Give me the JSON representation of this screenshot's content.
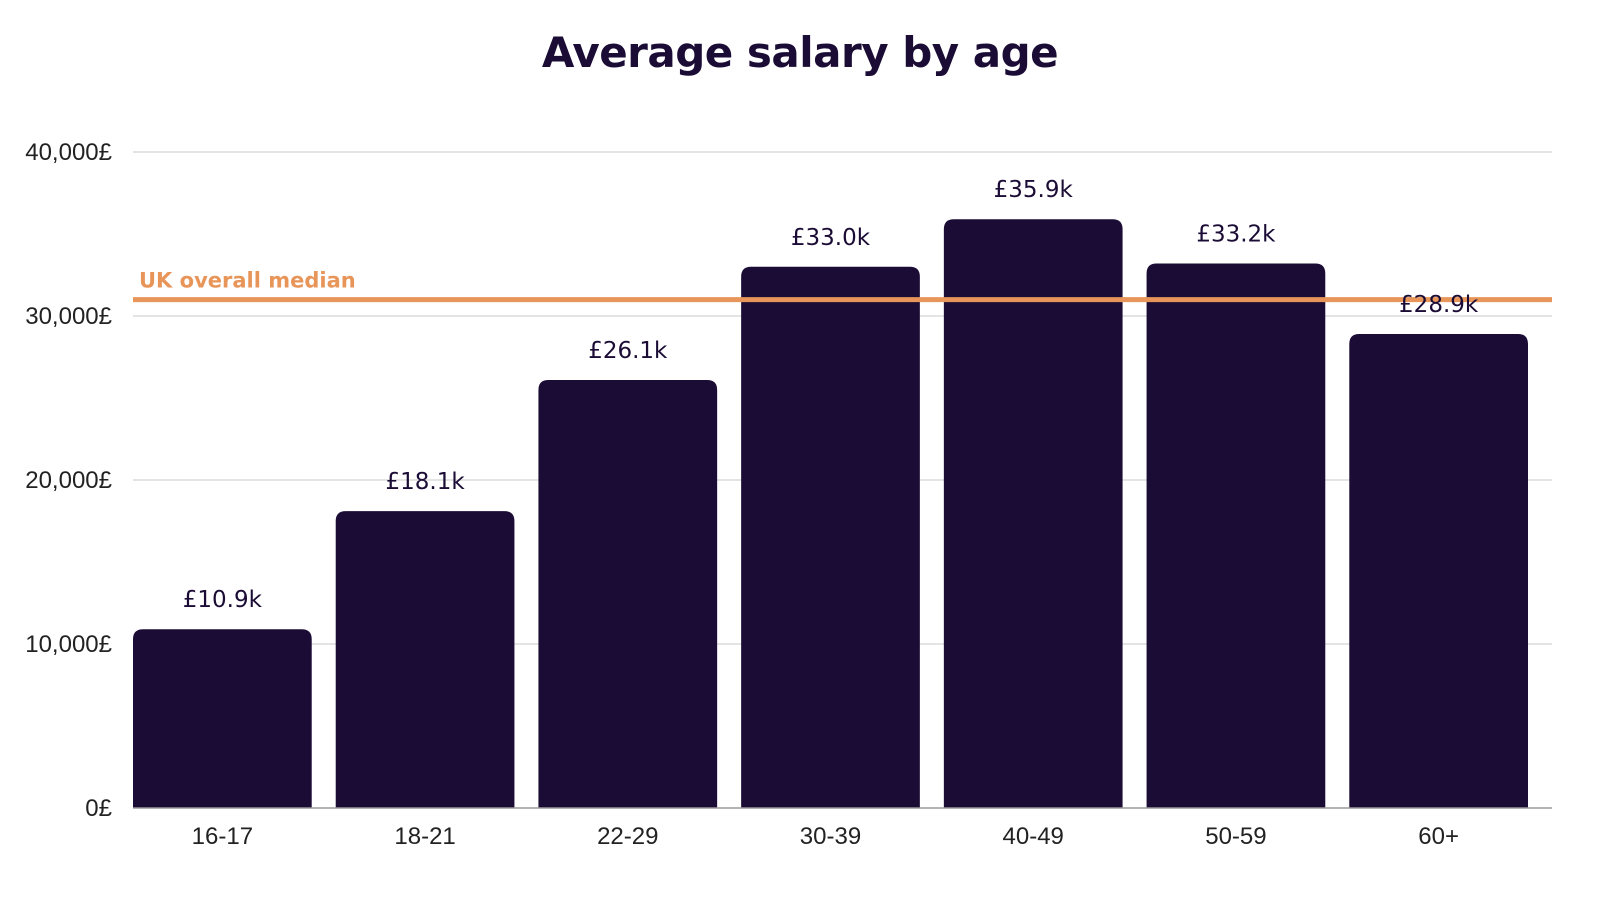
{
  "chart_data": {
    "type": "bar",
    "title": "Average salary by age",
    "categories": [
      "16-17",
      "18-21",
      "22-29",
      "30-39",
      "40-49",
      "50-59",
      "60+"
    ],
    "values": [
      10900,
      18100,
      26100,
      33000,
      35900,
      33200,
      28900
    ],
    "data_labels": [
      "£10.9k",
      "£18.1k",
      "£26.1k",
      "£33.0k",
      "£35.9k",
      "£33.2k",
      "£28.9k"
    ],
    "ylim": [
      0,
      40000
    ],
    "yticks": [
      0,
      10000,
      20000,
      30000,
      40000
    ],
    "ytick_labels": [
      "0£",
      "10,000£",
      "20,000£",
      "30,000£",
      "40,000£"
    ],
    "xlabel": "",
    "ylabel": "",
    "grid": true,
    "reference_line": {
      "label": "UK overall median",
      "value": 31000
    },
    "colors": {
      "bar": "#1b0c35",
      "reference": "#e8955a",
      "grid": "#d4d4d4",
      "text": "#1b0c35"
    }
  }
}
